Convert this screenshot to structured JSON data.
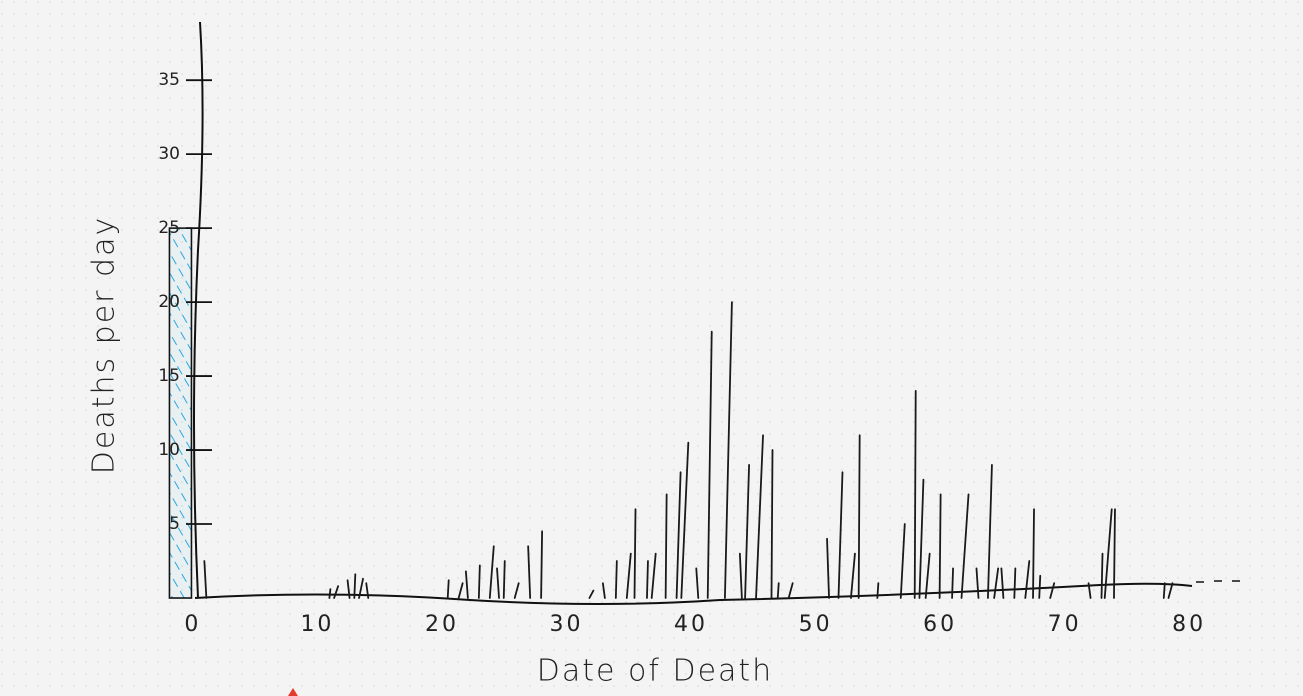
{
  "chart_data": {
    "type": "bar",
    "x_label": "Date of Death",
    "y_label": "Deaths per day",
    "x": [
      1,
      11,
      11.5,
      12.5,
      13,
      13.5,
      14,
      20.5,
      21.5,
      22,
      23,
      24,
      24.5,
      25,
      26,
      27,
      28,
      32,
      33,
      34,
      35,
      35.5,
      36.5,
      37,
      38,
      39,
      39.5,
      40.5,
      41.5,
      43,
      44,
      44.5,
      45.5,
      46.5,
      47,
      48,
      51,
      52,
      53,
      53.5,
      55,
      57,
      58,
      58.5,
      59,
      60,
      61,
      62,
      63,
      64,
      64.5,
      65,
      66,
      67,
      67.5,
      68,
      69,
      72,
      73,
      73.5,
      74,
      78,
      78.5
    ],
    "values": [
      2.5,
      0.6,
      0.8,
      1.2,
      1.6,
      1.3,
      1,
      1.2,
      1,
      1.8,
      2.2,
      3.5,
      2,
      2.5,
      1,
      3.5,
      4.5,
      0.5,
      1,
      2.5,
      3,
      6,
      2.5,
      3,
      7,
      8.5,
      10.5,
      2,
      18,
      20,
      3,
      9,
      11,
      10,
      1,
      1,
      4,
      8.5,
      3,
      11,
      1,
      5,
      14,
      8,
      3,
      7,
      2,
      7,
      2,
      9,
      2,
      2,
      2,
      2.5,
      6,
      1.5,
      1,
      1,
      3,
      6,
      6,
      1,
      1
    ],
    "color": "#1a1a1a",
    "highlight": {
      "x": -1,
      "value": 25,
      "color": "#2aa7e0"
    },
    "xlim": [
      -2,
      84
    ],
    "ylim": [
      0,
      39
    ],
    "xticks": [
      0,
      10,
      20,
      30,
      40,
      50,
      60,
      70,
      80
    ],
    "yticks": [
      5,
      10,
      15,
      20,
      25,
      30,
      35
    ]
  }
}
